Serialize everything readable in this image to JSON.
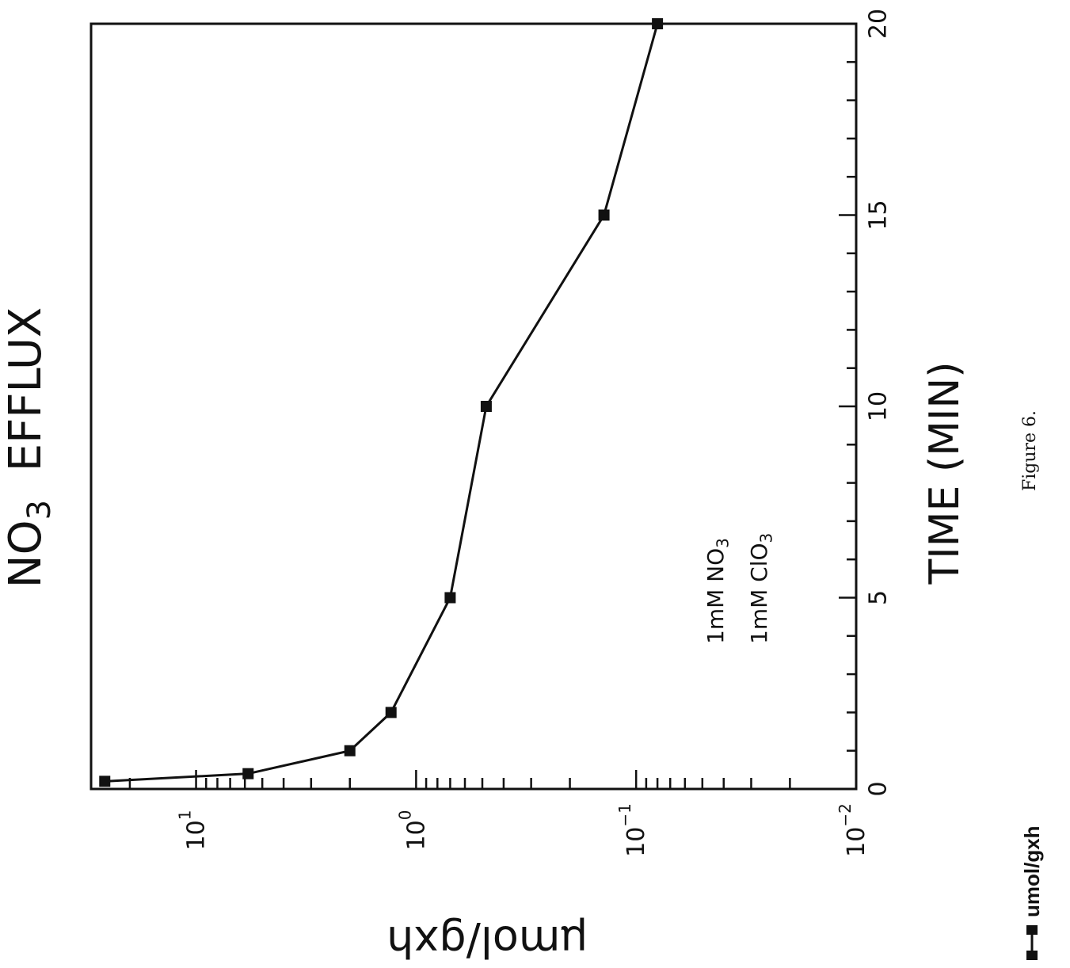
{
  "chart_data": {
    "type": "line",
    "title": "NO3 EFFLUX",
    "title_main": "NO",
    "title_sub": "3",
    "title_rest": "EFFLUX",
    "xlabel": "TIME (MIN)",
    "ylabel": "µmol/gxh",
    "x_scale": "linear",
    "y_scale": "log",
    "xlim": [
      0,
      20
    ],
    "ylim": [
      0.01,
      30
    ],
    "x_ticks": [
      "0",
      "5",
      "10",
      "15",
      "20"
    ],
    "y_ticks": [
      {
        "base": "10",
        "exp": "1",
        "value": 10
      },
      {
        "base": "10",
        "exp": "0",
        "value": 1
      },
      {
        "base": "10",
        "exp": "−1",
        "value": 0.1
      },
      {
        "base": "10",
        "exp": "−2",
        "value": 0.01
      }
    ],
    "annotations": [
      {
        "main": "1mM NO",
        "sub": "3"
      },
      {
        "main": "1mM ClO",
        "sub": "3"
      }
    ],
    "series": [
      {
        "name": "umol/gxh",
        "x": [
          0.2,
          0.4,
          1.0,
          2.0,
          5.0,
          10.0,
          15.0,
          20.0
        ],
        "y": [
          26,
          5.8,
          2.0,
          1.3,
          0.7,
          0.48,
          0.14,
          0.08
        ]
      }
    ],
    "grid": false,
    "legend_position": "bottom-right"
  },
  "caption": "Figure 6.",
  "colors": {
    "ink": "#111111",
    "background": "#ffffff"
  }
}
